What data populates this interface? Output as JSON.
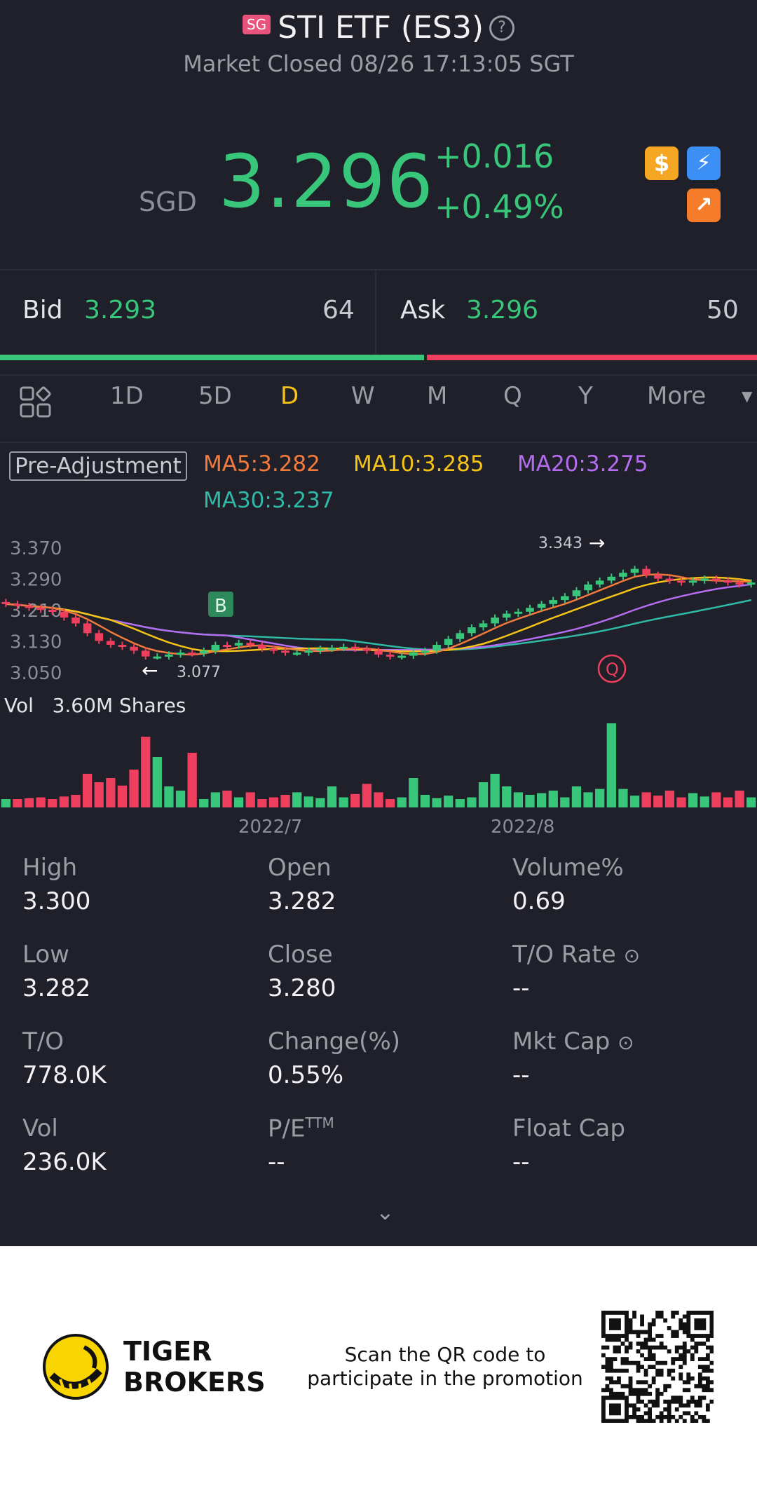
{
  "header": {
    "exchange_badge": "SG",
    "title": "STI ETF (ES3)",
    "status": "Market Closed 08/26 17:13:05 SGT",
    "currency": "SGD",
    "price": "3.296",
    "change": "+0.016",
    "change_pct": "+0.49%",
    "icons": [
      "dollar-icon",
      "flash-icon",
      "trend-icon"
    ]
  },
  "quote": {
    "bid_label": "Bid",
    "bid_price": "3.293",
    "bid_size": "64",
    "ask_label": "Ask",
    "ask_price": "3.296",
    "ask_size": "50",
    "bid_ratio": 0.56
  },
  "tabs": {
    "items": [
      "1D",
      "5D",
      "D",
      "W",
      "M",
      "Q",
      "Y",
      "More"
    ],
    "active": "D"
  },
  "indicators": {
    "pre_adjustment": "Pre-Adjustment",
    "ma5": "MA5:3.282",
    "ma10": "MA10:3.285",
    "ma20": "MA20:3.275",
    "ma30": "MA30:3.237"
  },
  "chart": {
    "y_ticks": [
      "3.370",
      "3.290",
      "3.210",
      "3.130",
      "3.050"
    ],
    "high_marker": "3.343",
    "low_marker": "3.077",
    "buy_marker": "B",
    "q_marker": "Q",
    "volume_label": "Vol",
    "volume_value": "3.60M Shares",
    "x_labels": [
      "2022/7",
      "2022/8"
    ]
  },
  "chart_data": {
    "type": "candlestick",
    "ylim": [
      3.03,
      3.39
    ],
    "y_ticks": [
      3.37,
      3.29,
      3.21,
      3.13,
      3.05
    ],
    "x_ticks": [
      "2022/7",
      "2022/8"
    ],
    "colors": {
      "up": "#38c77a",
      "down": "#ef3f5f",
      "ma5": "#f27a3c",
      "ma10": "#f5c318",
      "ma20": "#b46cf0",
      "ma30": "#2fb9a6"
    },
    "closes": [
      3.225,
      3.22,
      3.215,
      3.21,
      3.205,
      3.19,
      3.175,
      3.15,
      3.13,
      3.12,
      3.115,
      3.105,
      3.09,
      3.09,
      3.095,
      3.1,
      3.098,
      3.105,
      3.12,
      3.118,
      3.125,
      3.12,
      3.11,
      3.105,
      3.1,
      3.1,
      3.105,
      3.11,
      3.112,
      3.115,
      3.11,
      3.105,
      3.095,
      3.09,
      3.092,
      3.1,
      3.105,
      3.12,
      3.135,
      3.15,
      3.165,
      3.175,
      3.19,
      3.2,
      3.205,
      3.215,
      3.225,
      3.235,
      3.245,
      3.26,
      3.275,
      3.285,
      3.295,
      3.305,
      3.315,
      3.3,
      3.29,
      3.285,
      3.28,
      3.285,
      3.29,
      3.285,
      3.28,
      3.275,
      3.28
    ],
    "volumes": [
      10,
      10,
      11,
      12,
      10,
      13,
      15,
      40,
      30,
      35,
      26,
      45,
      84,
      60,
      25,
      20,
      65,
      10,
      18,
      20,
      12,
      18,
      10,
      12,
      15,
      18,
      13,
      11,
      25,
      12,
      16,
      28,
      18,
      10,
      12,
      35,
      15,
      11,
      14,
      10,
      12,
      30,
      40,
      25,
      18,
      15,
      17,
      20,
      12,
      25,
      18,
      22,
      100,
      22,
      14,
      18,
      14,
      20,
      12,
      17,
      13,
      18,
      12,
      20,
      12
    ]
  },
  "stats": [
    {
      "label": "High",
      "value": "3.300"
    },
    {
      "label": "Open",
      "value": "3.282"
    },
    {
      "label": "Volume%",
      "value": "0.69"
    },
    {
      "label": "Low",
      "value": "3.282"
    },
    {
      "label": "Close",
      "value": "3.280"
    },
    {
      "label": "T/O Rate",
      "value": "--"
    },
    {
      "label": "T/O",
      "value": "778.0K"
    },
    {
      "label": "Change(%)",
      "value": "0.55%"
    },
    {
      "label": "Mkt Cap",
      "value": "--"
    },
    {
      "label": "Vol",
      "value": "236.0K"
    },
    {
      "label": "P/ETTM",
      "value": "--"
    },
    {
      "label": "Float Cap",
      "value": "--"
    }
  ],
  "pe_label": {
    "base": "P/E",
    "sup": "TTM"
  },
  "footer": {
    "brand_line1": "TIGER",
    "brand_line2": "BROKERS",
    "promo_line1": "Scan the QR code to",
    "promo_line2": "participate in the promotion"
  }
}
